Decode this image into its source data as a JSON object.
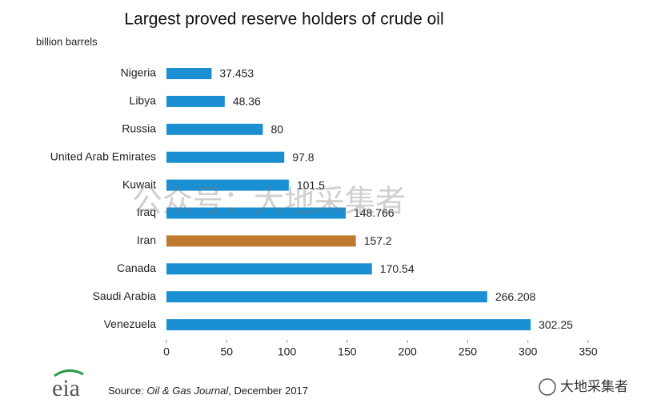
{
  "chart_data": {
    "type": "barh",
    "title": "Largest proved reserve holders of crude oil",
    "unit_label": "billion barrels",
    "categories": [
      "Nigeria",
      "Libya",
      "Russia",
      "United Arab Emirates",
      "Kuwait",
      "Iraq",
      "Iran",
      "Canada",
      "Saudi Arabia",
      "Venezuela"
    ],
    "values": [
      37.453,
      48.36,
      80,
      97.8,
      101.5,
      148.766,
      157.2,
      170.54,
      266.208,
      302.25
    ],
    "colors": [
      "#1a8fd1",
      "#1a8fd1",
      "#1a8fd1",
      "#1a8fd1",
      "#1a8fd1",
      "#1a8fd1",
      "#c07a30",
      "#1a8fd1",
      "#1a8fd1",
      "#1a8fd1"
    ],
    "xlim": [
      0,
      350
    ],
    "xticks": [
      0,
      50,
      100,
      150,
      200,
      250,
      300,
      350
    ],
    "source": {
      "label": "Source: ",
      "publication": "Oil & Gas Journal",
      "date": ", December 2017"
    },
    "logo": "eia",
    "watermark": "公众号：大地采集者",
    "account": "大地采集者"
  }
}
